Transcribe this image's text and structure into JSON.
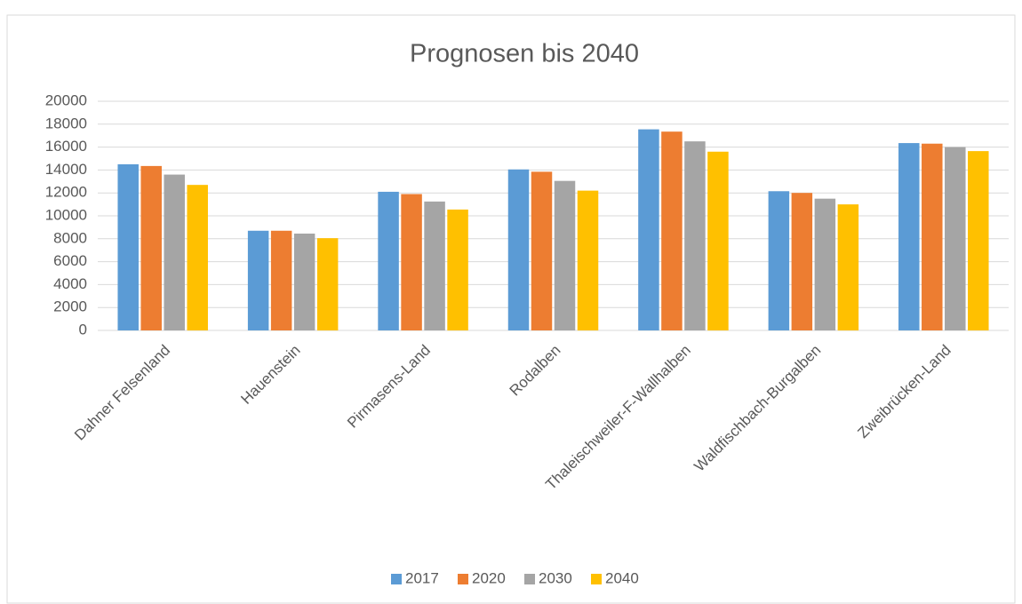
{
  "chart_data": {
    "type": "bar",
    "title": "Prognosen bis 2040",
    "categories": [
      "Dahner Felsenland",
      "Hauenstein",
      "Pirmasens-Land",
      "Rodalben",
      "Thaleischweiler-F-Wallhalben",
      "Waldfischbach-Burgalben",
      "Zweibrücken-Land"
    ],
    "series": [
      {
        "name": "2017",
        "color": "#5b9bd5",
        "values": [
          14500,
          8700,
          12100,
          14050,
          17550,
          12150,
          16350
        ]
      },
      {
        "name": "2020",
        "color": "#ed7d31",
        "values": [
          14350,
          8700,
          11900,
          13850,
          17350,
          12000,
          16300
        ]
      },
      {
        "name": "2030",
        "color": "#a5a5a5",
        "values": [
          13600,
          8450,
          11250,
          13050,
          16500,
          11500,
          16000
        ]
      },
      {
        "name": "2040",
        "color": "#ffc000",
        "values": [
          12700,
          8050,
          10550,
          12200,
          15600,
          11000,
          15650
        ]
      }
    ],
    "ylim": [
      0,
      20000
    ],
    "yticks": [
      0,
      2000,
      4000,
      6000,
      8000,
      10000,
      12000,
      14000,
      16000,
      18000,
      20000
    ],
    "grid": true,
    "legend": "bottom"
  }
}
